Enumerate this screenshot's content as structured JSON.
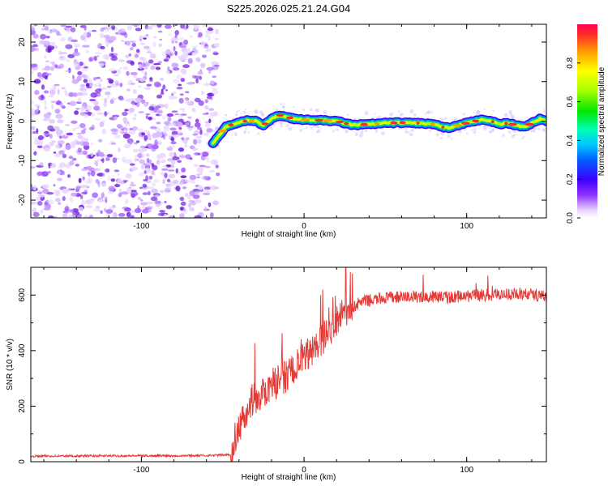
{
  "title": "S225.2026.025.21.24.G04",
  "chart_data": [
    {
      "type": "heatmap",
      "xlabel": "Height of straight line (km)",
      "ylabel": "Frequency (Hz)",
      "xlim": [
        -168,
        149
      ],
      "ylim": [
        -24.5,
        24.5
      ],
      "xticks": [
        -100,
        0,
        100
      ],
      "yticks": [
        -20,
        -10,
        0,
        10,
        20
      ],
      "noise_region_x": [
        -168,
        -53
      ],
      "ridge": {
        "x": [
          -56,
          -52,
          -48,
          -44,
          -40,
          -35,
          -30,
          -25,
          -20,
          -15,
          -10,
          -5,
          0,
          5,
          10,
          20,
          30,
          40,
          50,
          60,
          70,
          80,
          85,
          90,
          95,
          100,
          105,
          110,
          115,
          120,
          125,
          130,
          135,
          140,
          145,
          149
        ],
        "frequency": [
          -5.5,
          -3.5,
          -1.5,
          -0.8,
          -0.3,
          0.1,
          0.0,
          -1.0,
          0.5,
          1.5,
          1.0,
          0.5,
          0.3,
          0.3,
          0.2,
          0.0,
          -1.0,
          -0.8,
          -0.5,
          -0.4,
          -0.5,
          -0.8,
          -1.5,
          -1.8,
          -1.0,
          -0.5,
          0.0,
          0.5,
          0.0,
          -0.8,
          -0.5,
          -1.0,
          -1.5,
          -0.5,
          0.5,
          0.0
        ]
      },
      "colorbar": {
        "label": "Normalized spectral amplitude",
        "ticks": [
          0.0,
          0.2,
          0.4,
          0.6,
          0.8
        ],
        "range": [
          0,
          1
        ]
      }
    },
    {
      "type": "line",
      "xlabel": "Height of straight line (km)",
      "ylabel": "SNR (10 * v/v)",
      "xlim": [
        -168,
        149
      ],
      "ylim": [
        0,
        700
      ],
      "xticks": [
        -100,
        0,
        100
      ],
      "yticks": [
        0,
        200,
        400,
        600
      ],
      "color": "#e53b37",
      "series": [
        {
          "x": [
            -168,
            -60,
            -45,
            -42,
            -38,
            -32,
            -25,
            -15,
            -5,
            5,
            15,
            25,
            35,
            50,
            70,
            90,
            110,
            130,
            149
          ],
          "y": [
            20,
            22,
            25,
            60,
            160,
            220,
            250,
            290,
            340,
            400,
            470,
            540,
            575,
            590,
            595,
            592,
            600,
            605,
            600
          ]
        }
      ]
    }
  ]
}
